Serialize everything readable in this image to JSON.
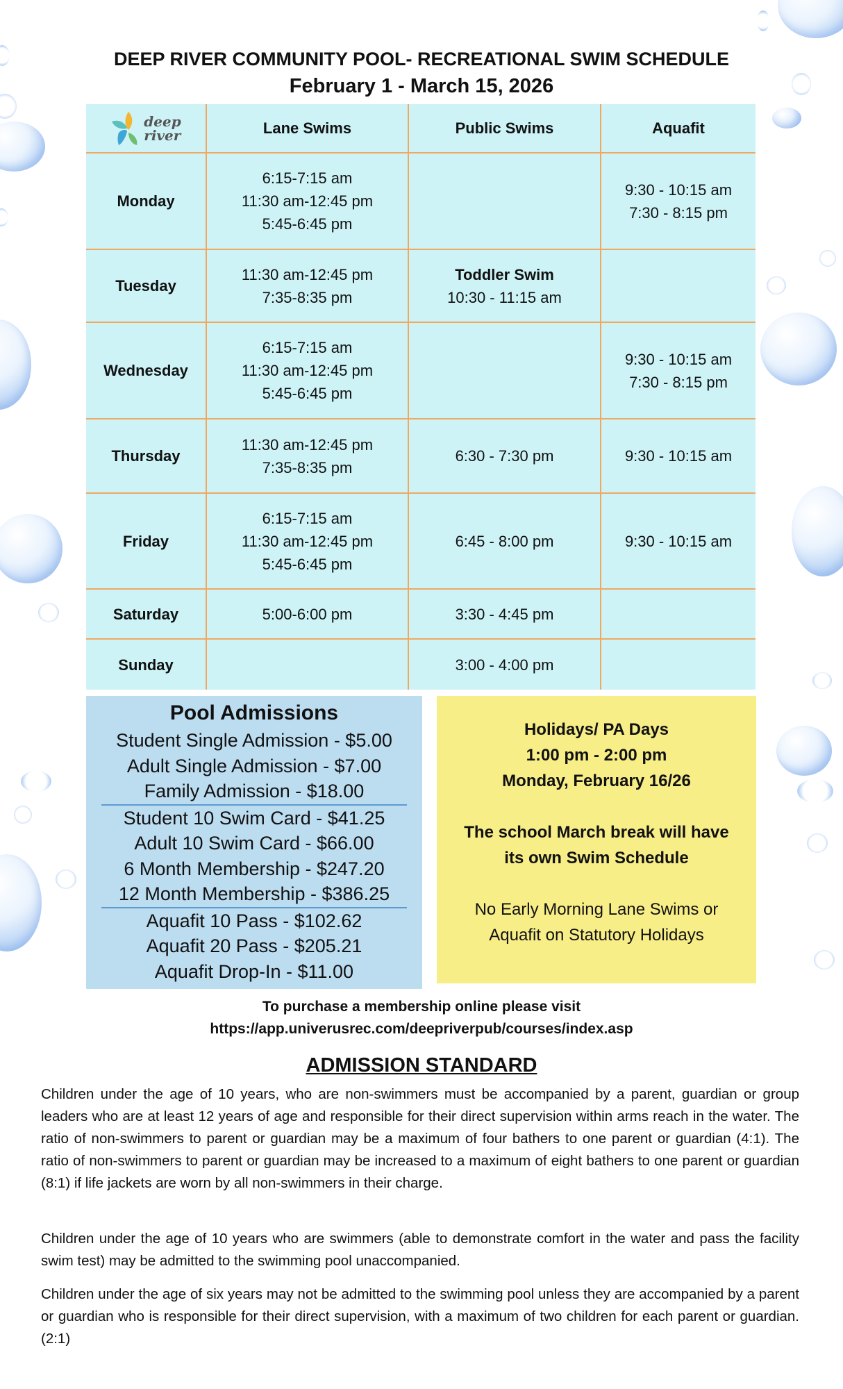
{
  "header": {
    "title": "DEEP RIVER COMMUNITY POOL- RECREATIONAL SWIM SCHEDULE",
    "subtitle": "February 1 - March 15, 2026"
  },
  "logo": {
    "line1": "deep",
    "line2": "river",
    "colors": [
      "#f2b632",
      "#3fa7d6",
      "#5bc0be",
      "#6fbf73"
    ]
  },
  "schedule": {
    "columns": [
      "Lane Swims",
      "Public Swims",
      "Aquafit"
    ],
    "rows": [
      {
        "day": "Monday",
        "lane": [
          "6:15-7:15 am",
          "11:30 am-12:45 pm",
          "5:45-6:45 pm"
        ],
        "public": [],
        "aquafit": [
          "9:30 - 10:15 am",
          "7:30 - 8:15 pm"
        ]
      },
      {
        "day": "Tuesday",
        "lane": [
          "11:30 am-12:45 pm",
          "7:35-8:35 pm"
        ],
        "public_label": "Toddler Swim",
        "public": [
          "10:30 - 11:15 am"
        ],
        "aquafit": []
      },
      {
        "day": "Wednesday",
        "lane": [
          "6:15-7:15 am",
          "11:30 am-12:45 pm",
          "5:45-6:45 pm"
        ],
        "public": [],
        "aquafit": [
          "9:30 - 10:15 am",
          "7:30 - 8:15 pm"
        ]
      },
      {
        "day": "Thursday",
        "lane": [
          "11:30 am-12:45 pm",
          "7:35-8:35 pm"
        ],
        "public": [
          "6:30 - 7:30 pm"
        ],
        "aquafit": [
          "9:30 - 10:15 am"
        ]
      },
      {
        "day": "Friday",
        "lane": [
          "6:15-7:15 am",
          "11:30 am-12:45 pm",
          "5:45-6:45 pm"
        ],
        "public": [
          "6:45 - 8:00 pm"
        ],
        "aquafit": [
          "9:30 - 10:15 am"
        ]
      },
      {
        "day": "Saturday",
        "lane": [
          "5:00-6:00 pm"
        ],
        "public": [
          "3:30 - 4:45 pm"
        ],
        "aquafit": []
      },
      {
        "day": "Sunday",
        "lane": [],
        "public": [
          "3:00 - 4:00 pm"
        ],
        "aquafit": []
      }
    ]
  },
  "admissions": {
    "title": "Pool Admissions",
    "groups": [
      [
        "Student Single Admission - $5.00",
        "Adult Single Admission - $7.00",
        "Family Admission - $18.00"
      ],
      [
        "Student 10 Swim Card - $41.25",
        "Adult 10 Swim Card - $66.00",
        "6 Month Membership - $247.20",
        "12 Month Membership - $386.25"
      ],
      [
        "Aquafit 10 Pass - $102.62",
        "Aquafit 20 Pass - $205.21",
        "Aquafit Drop-In - $11.00"
      ]
    ]
  },
  "holidays": {
    "heading": "Holidays/ PA Days",
    "time": "1:00 pm - 2:00 pm",
    "date": "Monday, February 16/26",
    "march_break": [
      "The school March break will have",
      "its own Swim Schedule"
    ],
    "note": [
      "No Early Morning Lane Swims or",
      "Aquafit on Statutory Holidays"
    ]
  },
  "purchase": {
    "line1": "To purchase a membership online please visit",
    "url": "https://app.univerusrec.com/deepriverpub/courses/index.asp"
  },
  "standard": {
    "heading": "ADMISSION STANDARD",
    "paragraphs": [
      "Children under the age of 10 years, who are non-swimmers must be accompanied by a parent, guardian or group leaders who are at least 12 years of age and responsible for their direct supervision within arms reach in the water. The ratio of non-swimmers to parent or guardian may be a maximum of four bathers to one parent or guardian (4:1). The ratio of non-swimmers to parent or guardian may be increased to a maximum of eight bathers to one parent or guardian (8:1) if life jackets are worn by all non-swimmers in their charge.",
      "Children under the age of 10 years who are swimmers (able to demonstrate comfort in the water and pass the facility swim test) may be admitted to the swimming pool unaccompanied.",
      "Children under the age of six years may not be admitted to the swimming pool unless they are accompanied by a parent or guardian who is responsible for their direct supervision, with a maximum of two children for each parent or guardian. (2:1)"
    ]
  },
  "colors": {
    "table_bg": "#cdf3f7",
    "grid": "#f0a860",
    "admissions_bg": "#bcdcf0",
    "holiday_bg": "#f8ee88"
  }
}
